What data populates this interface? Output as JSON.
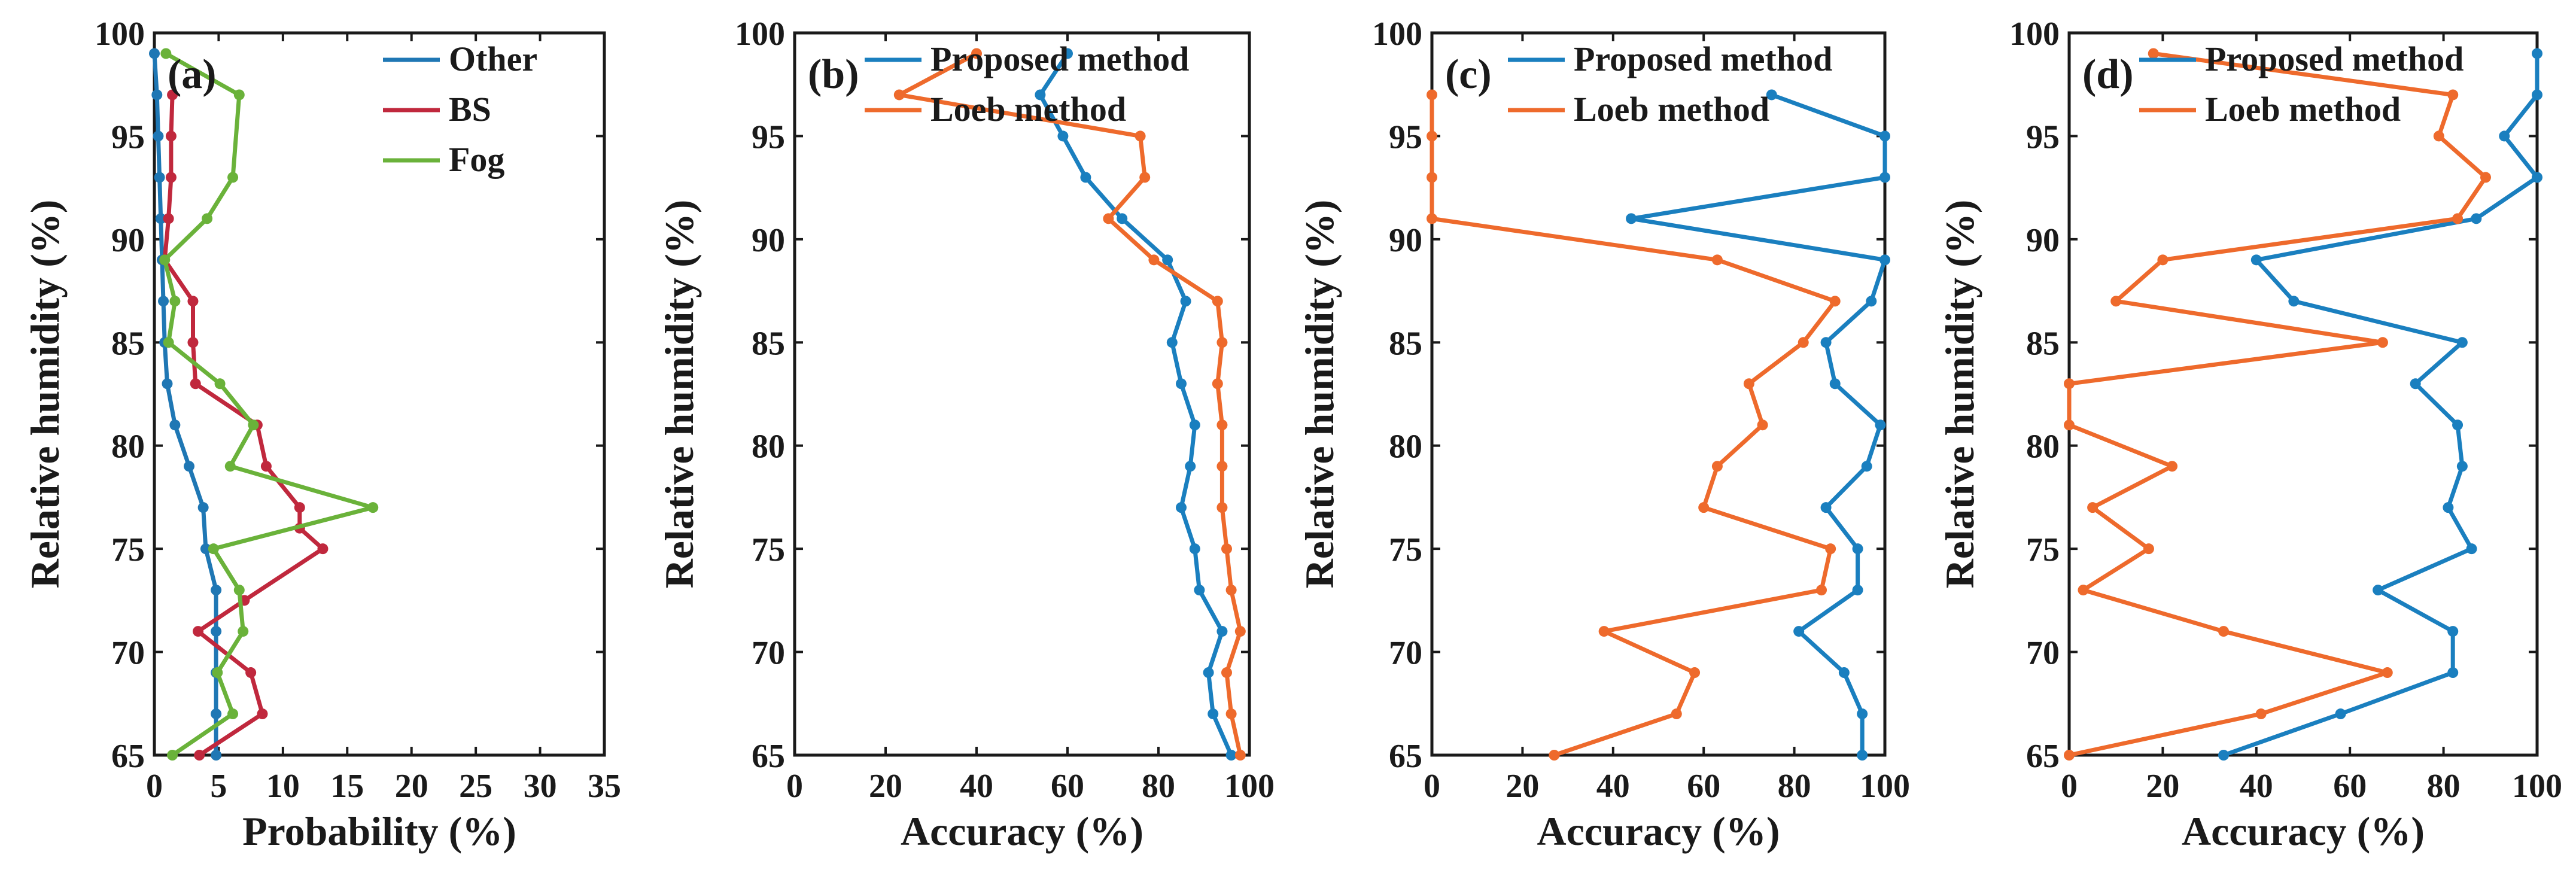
{
  "colors": {
    "other": "#1f77b4",
    "bs": "#c0283d",
    "fog": "#6ab23a",
    "proposed": "#1a7fbf",
    "loeb": "#ee6a2c"
  },
  "chart_data": [
    {
      "type": "line",
      "panel": "(a)",
      "xlabel": "Probability (%)",
      "ylabel": "Relative humidity (%)",
      "xlim": [
        0,
        35
      ],
      "ylim": [
        65,
        100
      ],
      "xticks": [
        0,
        5,
        10,
        15,
        20,
        25,
        30,
        35
      ],
      "yticks": [
        65,
        70,
        75,
        80,
        85,
        90,
        95,
        100
      ],
      "legend": "top-right",
      "series": [
        {
          "name": "Other",
          "color_key": "other",
          "points": [
            [
              0,
              99
            ],
            [
              0.2,
              97
            ],
            [
              0.3,
              95
            ],
            [
              0.4,
              93
            ],
            [
              0.5,
              91
            ],
            [
              0.6,
              89
            ],
            [
              0.7,
              87
            ],
            [
              0.8,
              85
            ],
            [
              1,
              83
            ],
            [
              1.6,
              81
            ],
            [
              2.7,
              79
            ],
            [
              3.8,
              77
            ],
            [
              4,
              75
            ],
            [
              4.8,
              73
            ],
            [
              4.8,
              71
            ],
            [
              4.8,
              69
            ],
            [
              4.8,
              67
            ],
            [
              4.8,
              65
            ]
          ]
        },
        {
          "name": "BS",
          "color_key": "bs",
          "points": [
            [
              1.4,
              97
            ],
            [
              1.3,
              95
            ],
            [
              1.3,
              93
            ],
            [
              1.1,
              91
            ],
            [
              0.8,
              89
            ],
            [
              3,
              87
            ],
            [
              3,
              85
            ],
            [
              3.2,
              83
            ],
            [
              8,
              81
            ],
            [
              8.7,
              79
            ],
            [
              11.3,
              77
            ],
            [
              11.3,
              76
            ],
            [
              13.1,
              75
            ],
            [
              7,
              72.5
            ],
            [
              3.4,
              71
            ],
            [
              7.5,
              69
            ],
            [
              8.4,
              67
            ],
            [
              3.5,
              65
            ]
          ]
        },
        {
          "name": "Fog",
          "color_key": "fog",
          "points": [
            [
              0.9,
              99
            ],
            [
              6.6,
              97
            ],
            [
              6.1,
              93
            ],
            [
              4.1,
              91
            ],
            [
              0.8,
              89
            ],
            [
              1.6,
              87
            ],
            [
              1.1,
              85
            ],
            [
              5.1,
              83
            ],
            [
              7.7,
              81
            ],
            [
              5.9,
              79
            ],
            [
              17,
              77
            ],
            [
              4.6,
              75
            ],
            [
              6.6,
              73
            ],
            [
              6.9,
              71
            ],
            [
              4.9,
              69
            ],
            [
              6.1,
              67
            ],
            [
              1.4,
              65
            ]
          ]
        }
      ]
    },
    {
      "type": "line",
      "panel": "(b)",
      "xlabel": "Accuracy (%)",
      "ylabel": "Relative humidity (%)",
      "xlim": [
        0,
        100
      ],
      "ylim": [
        65,
        100
      ],
      "xticks": [
        0,
        20,
        40,
        60,
        80,
        100
      ],
      "yticks": [
        65,
        70,
        75,
        80,
        85,
        90,
        95,
        100
      ],
      "legend": "top-left",
      "series": [
        {
          "name": "Proposed method",
          "color_key": "proposed",
          "points": [
            [
              60,
              99
            ],
            [
              54,
              97
            ],
            [
              59,
              95
            ],
            [
              64,
              93
            ],
            [
              72,
              91
            ],
            [
              82,
              89
            ],
            [
              86,
              87
            ],
            [
              83,
              85
            ],
            [
              85,
              83
            ],
            [
              88,
              81
            ],
            [
              87,
              79
            ],
            [
              85,
              77
            ],
            [
              88,
              75
            ],
            [
              89,
              73
            ],
            [
              94,
              71
            ],
            [
              91,
              69
            ],
            [
              92,
              67
            ],
            [
              96,
              65
            ]
          ]
        },
        {
          "name": "Loeb method",
          "color_key": "loeb",
          "points": [
            [
              40,
              99
            ],
            [
              23,
              97
            ],
            [
              76,
              95
            ],
            [
              77,
              93
            ],
            [
              69,
              91
            ],
            [
              79,
              89
            ],
            [
              93,
              87
            ],
            [
              94,
              85
            ],
            [
              93,
              83
            ],
            [
              94,
              81
            ],
            [
              94,
              79
            ],
            [
              94,
              77
            ],
            [
              95,
              75
            ],
            [
              96,
              73
            ],
            [
              98,
              71
            ],
            [
              95,
              69
            ],
            [
              96,
              67
            ],
            [
              98,
              65
            ]
          ]
        }
      ]
    },
    {
      "type": "line",
      "panel": "(c)",
      "xlabel": "Accuracy (%)",
      "ylabel": "Relative humidity (%)",
      "xlim": [
        0,
        100
      ],
      "ylim": [
        65,
        100
      ],
      "xticks": [
        0,
        20,
        40,
        60,
        80,
        100
      ],
      "yticks": [
        65,
        70,
        75,
        80,
        85,
        90,
        95,
        100
      ],
      "legend": "top-center",
      "series": [
        {
          "name": "Proposed method",
          "color_key": "proposed",
          "points": [
            [
              75,
              97
            ],
            [
              100,
              95
            ],
            [
              100,
              93
            ],
            [
              44,
              91
            ],
            [
              100,
              89
            ],
            [
              97,
              87
            ],
            [
              87,
              85
            ],
            [
              89,
              83
            ],
            [
              99,
              81
            ],
            [
              96,
              79
            ],
            [
              87,
              77
            ],
            [
              94,
              75
            ],
            [
              94,
              73
            ],
            [
              81,
              71
            ],
            [
              91,
              69
            ],
            [
              95,
              67
            ],
            [
              95,
              65
            ]
          ]
        },
        {
          "name": "Loeb method",
          "color_key": "loeb",
          "points": [
            [
              0,
              97
            ],
            [
              0,
              95
            ],
            [
              0,
              93
            ],
            [
              0,
              91
            ],
            [
              63,
              89
            ],
            [
              89,
              87
            ],
            [
              82,
              85
            ],
            [
              70,
              83
            ],
            [
              73,
              81
            ],
            [
              63,
              79
            ],
            [
              60,
              77
            ],
            [
              88,
              75
            ],
            [
              86,
              73
            ],
            [
              38,
              71
            ],
            [
              58,
              69
            ],
            [
              54,
              67
            ],
            [
              27,
              65
            ]
          ]
        }
      ]
    },
    {
      "type": "line",
      "panel": "(d)",
      "xlabel": "Accuracy (%)",
      "ylabel": "Relative humidity (%)",
      "xlim": [
        0,
        100
      ],
      "ylim": [
        65,
        100
      ],
      "xticks": [
        0,
        20,
        40,
        60,
        80,
        100
      ],
      "yticks": [
        65,
        70,
        75,
        80,
        85,
        90,
        95,
        100
      ],
      "legend": "top-left",
      "series": [
        {
          "name": "Proposed method",
          "color_key": "proposed",
          "points": [
            [
              100,
              99
            ],
            [
              100,
              97
            ],
            [
              93,
              95
            ],
            [
              100,
              93
            ],
            [
              87,
              91
            ],
            [
              40,
              89
            ],
            [
              48,
              87
            ],
            [
              84,
              85
            ],
            [
              74,
              83
            ],
            [
              83,
              81
            ],
            [
              84,
              79
            ],
            [
              81,
              77
            ],
            [
              86,
              75
            ],
            [
              66,
              73
            ],
            [
              82,
              71
            ],
            [
              82,
              69
            ],
            [
              58,
              67
            ],
            [
              33,
              65
            ]
          ]
        },
        {
          "name": "Loeb method",
          "color_key": "loeb",
          "points": [
            [
              18,
              99
            ],
            [
              82,
              97
            ],
            [
              79,
              95
            ],
            [
              89,
              93
            ],
            [
              83,
              91
            ],
            [
              20,
              89
            ],
            [
              10,
              87
            ],
            [
              67,
              85
            ],
            [
              0,
              83
            ],
            [
              0,
              81
            ],
            [
              22,
              79
            ],
            [
              5,
              77
            ],
            [
              17,
              75
            ],
            [
              3,
              73
            ],
            [
              33,
              71
            ],
            [
              68,
              69
            ],
            [
              41,
              67
            ],
            [
              0,
              65
            ]
          ]
        }
      ]
    }
  ]
}
